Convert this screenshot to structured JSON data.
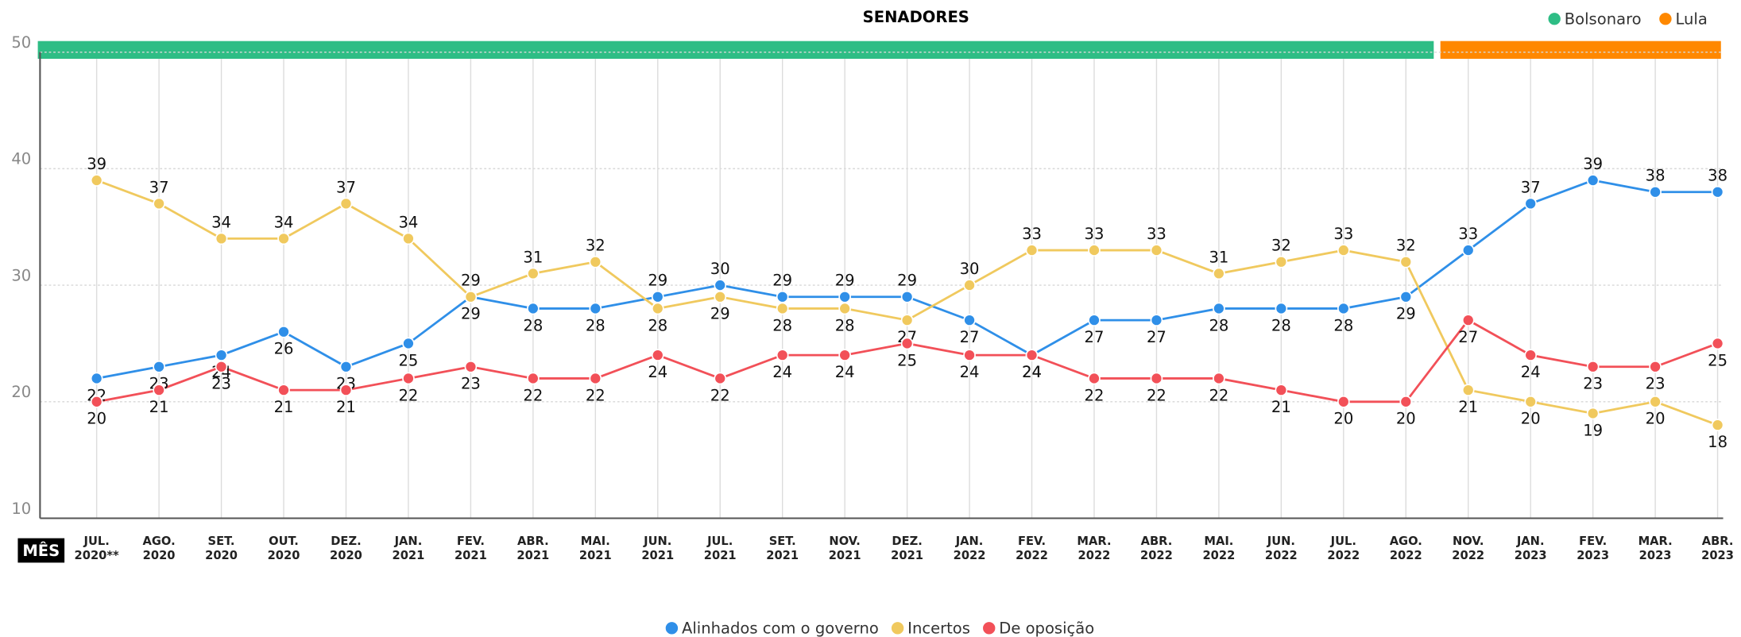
{
  "chart_data": {
    "type": "line",
    "title": "SENADORES",
    "x_label": "MÊS",
    "categories": [
      "JUL.\n2020**",
      "AGO.\n2020",
      "SET.\n2020",
      "OUT.\n2020",
      "DEZ.\n2020",
      "JAN.\n2021",
      "FEV.\n2021",
      "ABR.\n2021",
      "MAI.\n2021",
      "JUN.\n2021",
      "JUL.\n2021",
      "SET.\n2021",
      "NOV.\n2021",
      "DEZ.\n2021",
      "JAN.\n2022",
      "FEV.\n2022",
      "MAR.\n2022",
      "ABR.\n2022",
      "MAI.\n2022",
      "JUN.\n2022",
      "JUL.\n2022",
      "AGO.\n2022",
      "NOV.\n2022",
      "JAN.\n2023",
      "FEV.\n2023",
      "MAR.\n2023",
      "ABR.\n2023"
    ],
    "series": [
      {
        "name": "Alinhados com o governo",
        "color": "#2f8fe8",
        "values": [
          22,
          23,
          24,
          26,
          23,
          25,
          29,
          28,
          28,
          29,
          30,
          29,
          29,
          29,
          27,
          24,
          27,
          27,
          28,
          28,
          28,
          29,
          33,
          37,
          39,
          38,
          38
        ]
      },
      {
        "name": "Incertos",
        "color": "#f0c95e",
        "values": [
          39,
          37,
          34,
          34,
          37,
          34,
          29,
          31,
          32,
          28,
          29,
          28,
          28,
          27,
          30,
          33,
          33,
          33,
          31,
          32,
          33,
          32,
          21,
          20,
          19,
          20,
          18
        ]
      },
      {
        "name": "De oposição",
        "color": "#f25058",
        "values": [
          20,
          21,
          23,
          21,
          21,
          22,
          23,
          22,
          22,
          24,
          22,
          24,
          24,
          25,
          24,
          24,
          22,
          22,
          22,
          21,
          20,
          20,
          27,
          24,
          23,
          23,
          25
        ]
      }
    ],
    "periods": [
      {
        "name": "Bolsonaro",
        "color": "#2ebd85"
      },
      {
        "name": "Lula",
        "color": "#ff8800"
      }
    ],
    "ylim": [
      10,
      50
    ],
    "yticks": [
      10,
      20,
      30,
      40,
      50
    ],
    "grid": true
  }
}
